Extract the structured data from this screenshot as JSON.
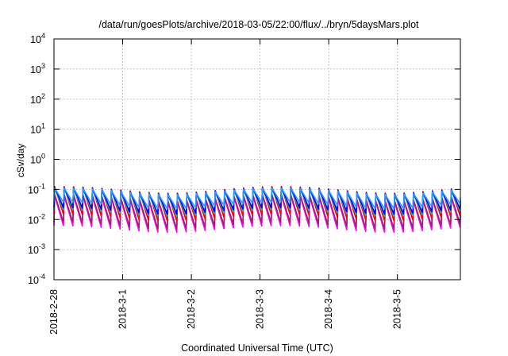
{
  "chart_data": {
    "type": "line",
    "title": "/data/run/goesPlots/archive/2018-03-05/22:00/flux/../bryn/5daysMars.plot",
    "xlabel": "Coordinated Universal Time (UTC)",
    "ylabel": "cSv/day",
    "y_scale": "log",
    "ylim": [
      0.0001,
      10000
    ],
    "y_ticks": [
      {
        "value": 0.0001,
        "base": "10",
        "exp": "-4"
      },
      {
        "value": 0.001,
        "base": "10",
        "exp": "-3"
      },
      {
        "value": 0.01,
        "base": "10",
        "exp": "-2"
      },
      {
        "value": 0.1,
        "base": "10",
        "exp": "-1"
      },
      {
        "value": 1,
        "base": "10",
        "exp": "0"
      },
      {
        "value": 10,
        "base": "10",
        "exp": "1"
      },
      {
        "value": 100,
        "base": "10",
        "exp": "2"
      },
      {
        "value": 1000,
        "base": "10",
        "exp": "3"
      },
      {
        "value": 10000,
        "base": "10",
        "exp": "4"
      }
    ],
    "xlim": [
      "2018-02-28T00:00",
      "2018-03-05T22:00"
    ],
    "x_ticks": [
      "2018-2-28",
      "2018-3-1",
      "2018-3-2",
      "2018-3-3",
      "2018-3-4",
      "2018-3-5"
    ],
    "x_tick_dates": [
      "2018-02-28",
      "2018-03-01",
      "2018-03-02",
      "2018-03-03",
      "2018-03-04",
      "2018-03-05"
    ],
    "grid": true,
    "legend": "none",
    "periodic_pattern": {
      "period_hours": 3.3,
      "description": "sawtooth: sharp rise then exponential decay"
    },
    "series": [
      {
        "color": "#ff00ff",
        "peak_cSv_per_day": 0.05,
        "trough_cSv_per_day": 0.005
      },
      {
        "color": "#a0206a",
        "peak_cSv_per_day": 0.055,
        "trough_cSv_per_day": 0.0065
      },
      {
        "color": "#ff0000",
        "peak_cSv_per_day": 0.1,
        "trough_cSv_per_day": 0.012
      },
      {
        "color": "#20b2aa",
        "peak_cSv_per_day": 0.085,
        "trough_cSv_per_day": 0.017
      },
      {
        "color": "#0000ff",
        "peak_cSv_per_day": 0.095,
        "trough_cSv_per_day": 0.02
      },
      {
        "color": "#3399ff",
        "peak_cSv_per_day": 0.09,
        "trough_cSv_per_day": 0.03
      }
    ]
  }
}
